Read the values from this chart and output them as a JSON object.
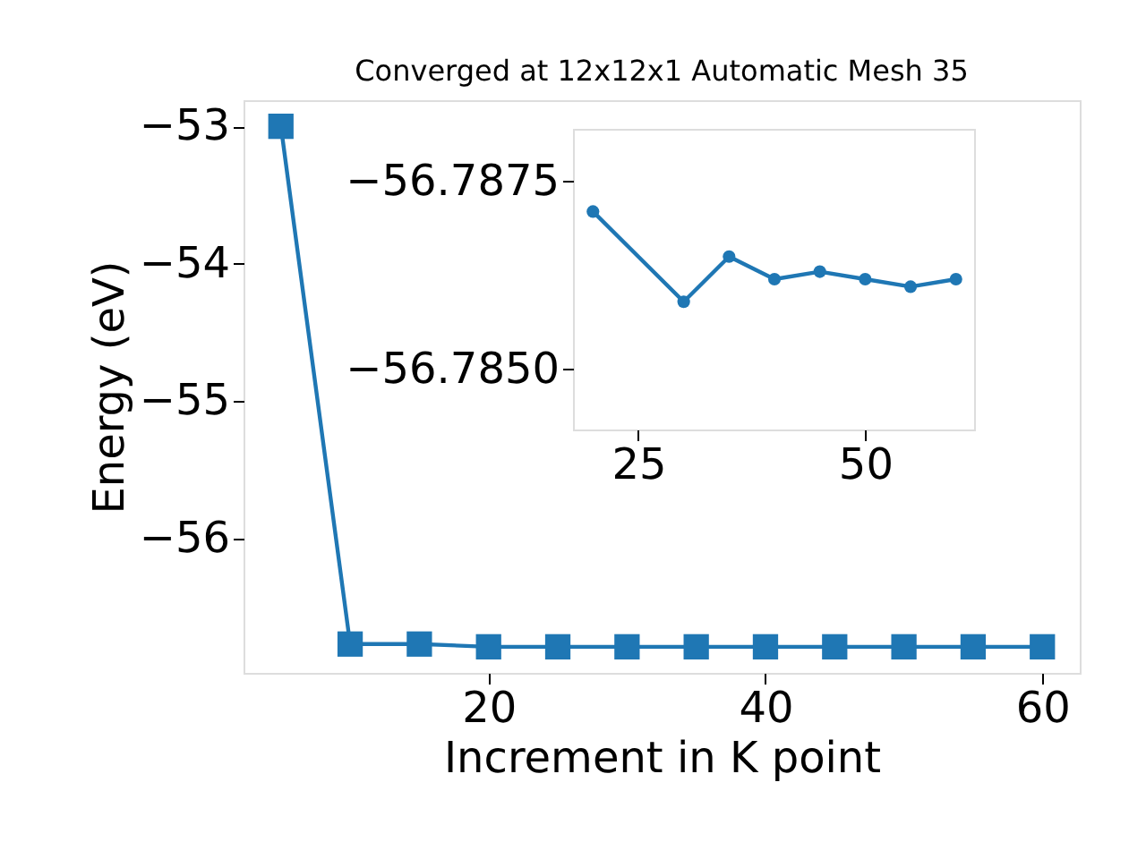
{
  "chart_data": [
    {
      "type": "line",
      "title": "Converged at 12x12x1 Automatic Mesh 35",
      "xlabel": "Increment in K point",
      "ylabel": "Energy (eV)",
      "x": [
        5,
        10,
        15,
        20,
        25,
        30,
        35,
        40,
        45,
        50,
        55,
        60
      ],
      "series": [
        {
          "color": "#1f77b4",
          "values": [
            -53.0,
            -56.77,
            -56.77,
            -56.79,
            -56.79,
            -56.79,
            -56.79,
            -56.79,
            -56.79,
            -56.79,
            -56.79,
            -56.79
          ]
        }
      ],
      "marker": "square",
      "line_style": "solid",
      "grid": false,
      "legend": false,
      "xlim": [
        2.3,
        62.7
      ],
      "xticks": [
        20,
        40,
        60
      ],
      "ylim": [
        -56.98,
        -52.81
      ],
      "yticks": [
        {
          "value": -53,
          "label": "−53"
        },
        {
          "value": -54,
          "label": "−54"
        },
        {
          "value": -55,
          "label": "−55"
        },
        {
          "value": -56,
          "label": "−56"
        }
      ]
    },
    {
      "type": "line",
      "x": [
        20,
        30,
        35,
        40,
        45,
        50,
        55,
        60
      ],
      "series": [
        {
          "color": "#1f77b4",
          "values": [
            -56.7871,
            -56.7859,
            -56.7865,
            -56.7862,
            -56.7863,
            -56.7862,
            -56.7861,
            -56.7862
          ]
        }
      ],
      "marker": "circle",
      "line_style": "solid",
      "grid": false,
      "legend": false,
      "xlim": [
        17.8,
        62.0
      ],
      "xticks": [
        25,
        50
      ],
      "ylim": [
        -56.7842,
        -56.7882
      ],
      "yticks": [
        {
          "value": -56.7875,
          "label": "−56.7875"
        },
        {
          "value": -56.785,
          "label": "−56.7850"
        }
      ]
    }
  ]
}
